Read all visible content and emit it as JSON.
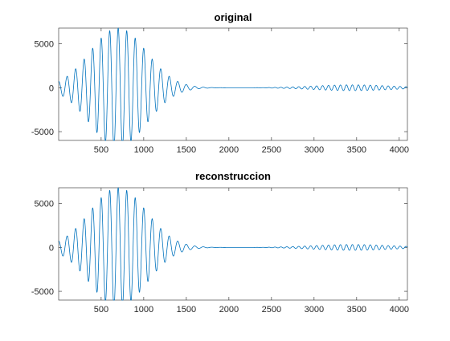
{
  "figure": {
    "background": "#ffffff",
    "line_color": "#0072BD",
    "axis_color": "#262626"
  },
  "chart_data": [
    {
      "type": "line",
      "title": "original",
      "xlabel": "",
      "ylabel": "",
      "xlim": [
        1,
        4096
      ],
      "ylim": [
        -6000,
        6800
      ],
      "xticks": [
        500,
        1000,
        1500,
        2000,
        2500,
        3000,
        3500,
        4000
      ],
      "yticks": [
        -5000,
        0,
        5000
      ],
      "xtick_labels": [
        "500",
        "1000",
        "1500",
        "2000",
        "2500",
        "3000",
        "3500",
        "4000"
      ],
      "ytick_labels": [
        "-5000",
        "0",
        "5000"
      ],
      "grid": false,
      "box": true,
      "signal": {
        "n_samples": 4096,
        "burst1": {
          "amplitude": 6800,
          "center": 700,
          "width": 330,
          "period": 100
        },
        "burst2": {
          "amplitude": 330,
          "center": 3450,
          "width": 450,
          "period": 70,
          "start": 2200
        },
        "peaks": [
          {
            "x": 340,
            "y": 4600
          },
          {
            "x": 385,
            "y": -4400
          },
          {
            "x": 485,
            "y": 6600
          },
          {
            "x": 535,
            "y": -5600
          },
          {
            "x": 685,
            "y": 6800
          },
          {
            "x": 735,
            "y": -5900
          },
          {
            "x": 935,
            "y": 5000
          },
          {
            "x": 1035,
            "y": -3500
          },
          {
            "x": 1135,
            "y": 3600
          },
          {
            "x": 1395,
            "y": 2200
          },
          {
            "x": 1550,
            "y": 1200
          }
        ]
      }
    },
    {
      "type": "line",
      "title": "reconstruccion",
      "xlabel": "",
      "ylabel": "",
      "xlim": [
        1,
        4096
      ],
      "ylim": [
        -6000,
        6800
      ],
      "xticks": [
        500,
        1000,
        1500,
        2000,
        2500,
        3000,
        3500,
        4000
      ],
      "yticks": [
        -5000,
        0,
        5000
      ],
      "xtick_labels": [
        "500",
        "1000",
        "1500",
        "2000",
        "2500",
        "3000",
        "3500",
        "4000"
      ],
      "ytick_labels": [
        "-5000",
        "0",
        "5000"
      ],
      "grid": false,
      "box": true,
      "signal": {
        "n_samples": 4096,
        "burst1": {
          "amplitude": 6800,
          "center": 700,
          "width": 330,
          "period": 100
        },
        "burst2": {
          "amplitude": 330,
          "center": 3450,
          "width": 450,
          "period": 70,
          "start": 2200
        }
      }
    }
  ]
}
